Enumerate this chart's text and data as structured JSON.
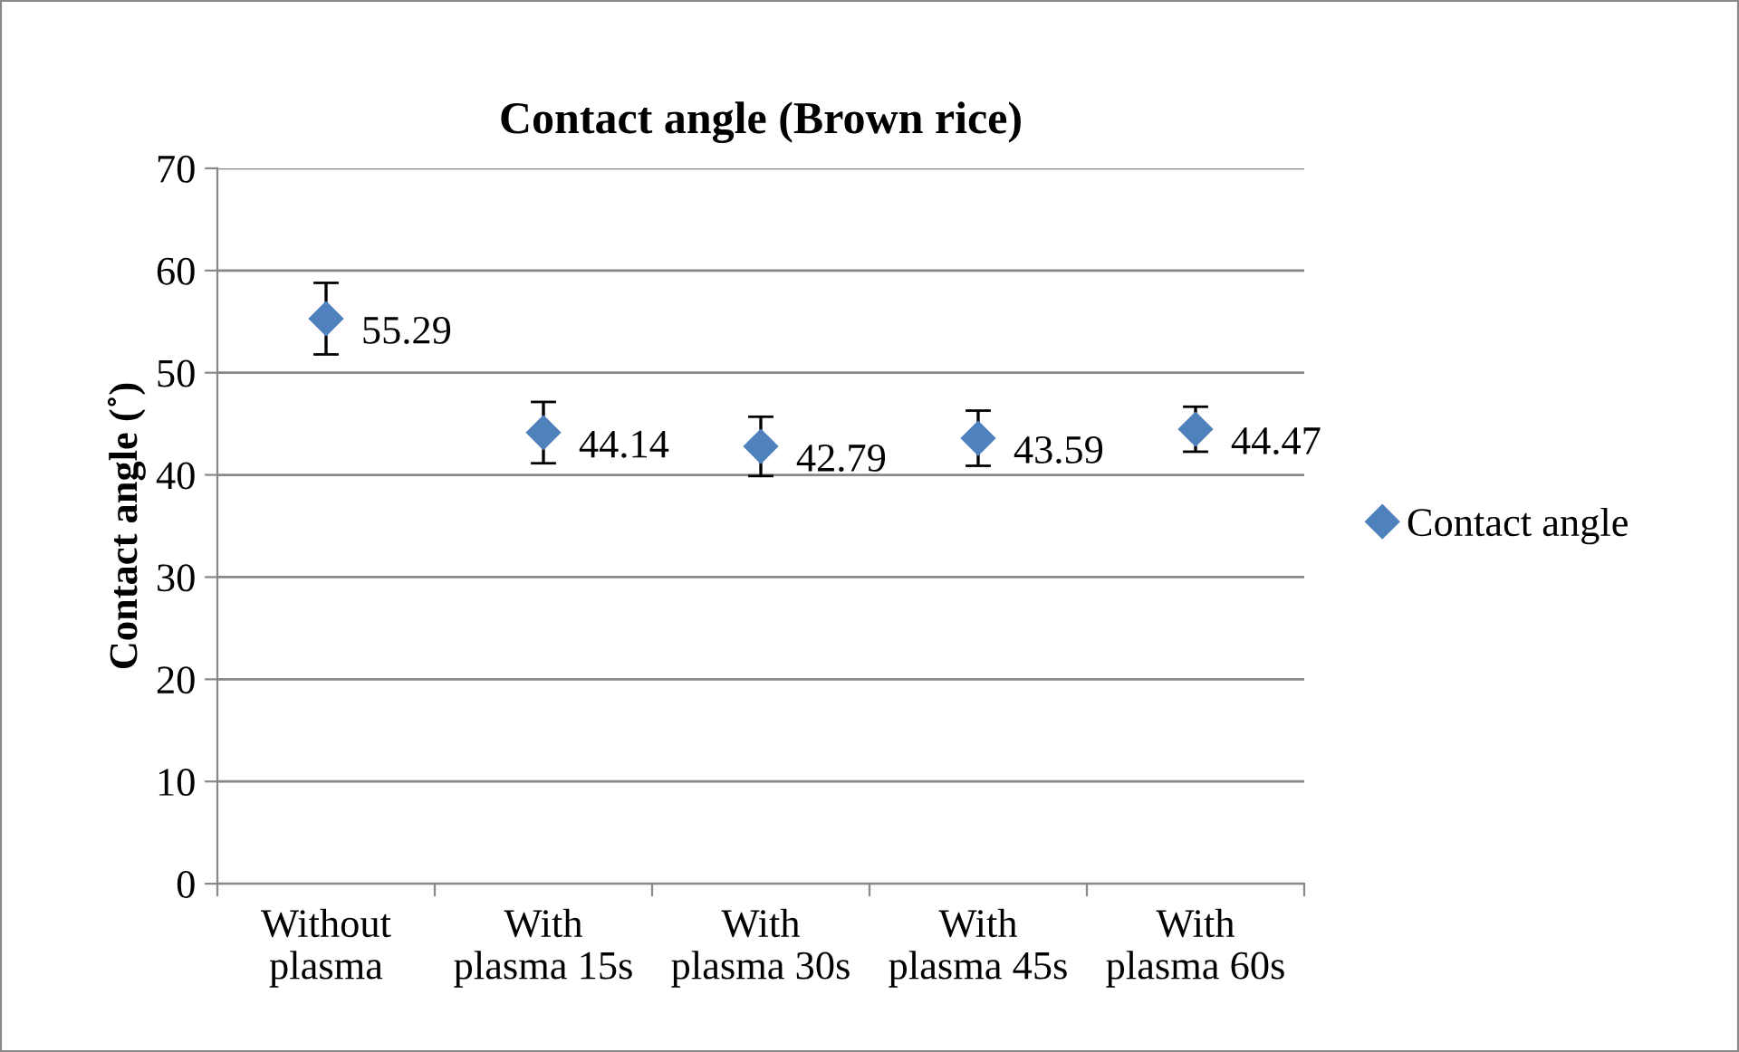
{
  "chart_data": {
    "type": "scatter",
    "title": "Contact angle (Brown rice)",
    "ylabel": "Contact angle (˚)",
    "categories": [
      "Without\nplasma",
      "With\nplasma 15s",
      "With\nplasma 30s",
      "With\nplasma 45s",
      "With\nplasma 60s"
    ],
    "series": [
      {
        "name": "Contact angle",
        "color": "#4f81bd",
        "values": [
          55.29,
          44.14,
          42.79,
          43.59,
          44.47
        ],
        "errors": [
          3.5,
          3.0,
          2.9,
          2.7,
          2.2
        ]
      }
    ],
    "data_labels": true,
    "ylim": [
      0,
      70
    ],
    "yticks": [
      0,
      10,
      20,
      30,
      40,
      50,
      60,
      70
    ],
    "grid": "y",
    "legend": "right",
    "marker": "diamond"
  }
}
